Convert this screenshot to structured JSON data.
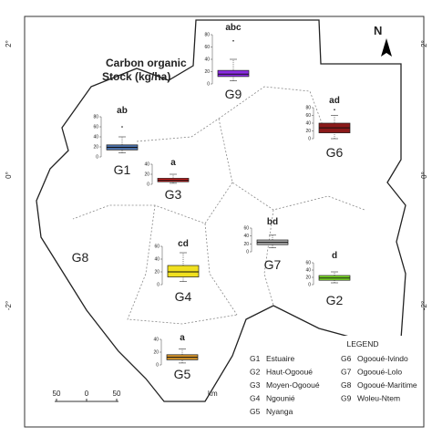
{
  "title_lines": [
    "Carbon organic",
    "Stock (kg/ha)"
  ],
  "north": "N",
  "lat_labels": [
    "2°",
    "0°",
    "-2°"
  ],
  "scale_bar": {
    "ticks": [
      50,
      0,
      50
    ],
    "unit": "km"
  },
  "region_label": "G8",
  "legend": {
    "title": "LEGEND",
    "items": [
      {
        "code": "G1",
        "name": "Estuaire"
      },
      {
        "code": "G2",
        "name": "Haut-Ogooué"
      },
      {
        "code": "G3",
        "name": "Moyen-Ogooué"
      },
      {
        "code": "G4",
        "name": "Ngounié"
      },
      {
        "code": "G5",
        "name": "Nyanga"
      },
      {
        "code": "G6",
        "name": "Ogooué-Ivindo"
      },
      {
        "code": "G7",
        "name": "Ogooué-Lolo"
      },
      {
        "code": "G8",
        "name": "Ogooué-Maritime"
      },
      {
        "code": "G9",
        "name": "Woleu-Ntem"
      }
    ]
  },
  "boxplots": [
    {
      "label": "G9",
      "letter": "abc",
      "color": "#8a2be2",
      "ylim": [
        0,
        80
      ],
      "yticks": [
        0,
        20,
        40,
        60,
        80
      ],
      "whisker_low": 5,
      "q1": 12,
      "median": 16,
      "q3": 22,
      "whisker_high": 40,
      "outliers": [
        70
      ]
    },
    {
      "label": "G1",
      "letter": "ab",
      "color": "#4a6fa8",
      "ylim": [
        0,
        80
      ],
      "yticks": [
        0,
        20,
        40,
        60,
        80
      ],
      "whisker_low": 8,
      "q1": 14,
      "median": 19,
      "q3": 24,
      "whisker_high": 40,
      "outliers": [
        60
      ]
    },
    {
      "label": "G3",
      "letter": "a",
      "color": "#cc1f1f",
      "ylim": [
        0,
        40
      ],
      "yticks": [
        0,
        20,
        40
      ],
      "whisker_low": 2,
      "q1": 5,
      "median": 8,
      "q3": 12,
      "whisker_high": 20,
      "outliers": []
    },
    {
      "label": "G6",
      "letter": "ad",
      "color": "#8b1a1a",
      "ylim": [
        0,
        80
      ],
      "yticks": [
        0,
        20,
        40,
        60,
        80
      ],
      "whisker_low": 0,
      "q1": 15,
      "median": 28,
      "q3": 40,
      "whisker_high": 60,
      "outliers": [
        75
      ]
    },
    {
      "label": "G7",
      "letter": "bd",
      "color": "#a9a9a9",
      "ylim": [
        0,
        60
      ],
      "yticks": [
        0,
        20,
        40,
        60
      ],
      "whisker_low": 10,
      "q1": 18,
      "median": 24,
      "q3": 30,
      "whisker_high": 42,
      "outliers": []
    },
    {
      "label": "G4",
      "letter": "cd",
      "color": "#f0e020",
      "ylim": [
        0,
        60
      ],
      "yticks": [
        0,
        20,
        40,
        60
      ],
      "whisker_low": 5,
      "q1": 12,
      "median": 20,
      "q3": 30,
      "whisker_high": 50,
      "outliers": []
    },
    {
      "label": "G2",
      "letter": "d",
      "color": "#7cdc28",
      "ylim": [
        0,
        60
      ],
      "yticks": [
        0,
        20,
        40,
        60
      ],
      "whisker_low": 5,
      "q1": 12,
      "median": 18,
      "q3": 25,
      "whisker_high": 35,
      "outliers": []
    },
    {
      "label": "G5",
      "letter": "a",
      "color": "#d4942a",
      "ylim": [
        0,
        40
      ],
      "yticks": [
        0,
        20,
        40
      ],
      "whisker_low": 3,
      "q1": 8,
      "median": 12,
      "q3": 16,
      "whisker_high": 25,
      "outliers": []
    }
  ]
}
